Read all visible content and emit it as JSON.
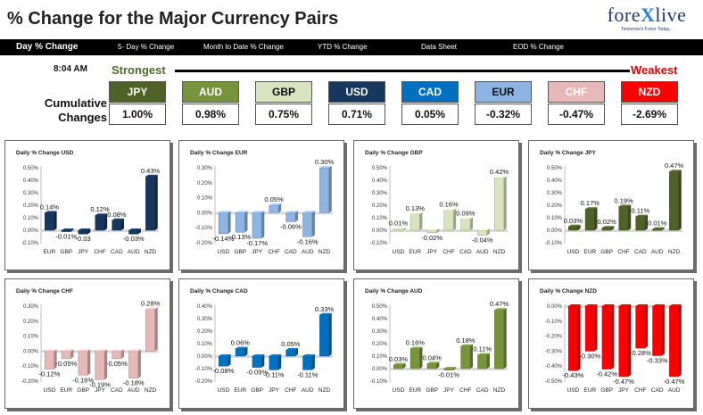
{
  "header": {
    "title": "% Change for the Major Currency Pairs",
    "logo": {
      "word_a": "fore",
      "word_x": "X",
      "word_b": "live",
      "tagline": "Tomorrow's Forex Today..."
    }
  },
  "tabs": [
    {
      "label": "Day % Change",
      "active": true
    },
    {
      "label": "5- Day % Change",
      "active": false
    },
    {
      "label": "Month to Date % Change",
      "active": false
    },
    {
      "label": "YTD % Change",
      "active": false
    },
    {
      "label": "Data Sheet",
      "active": false
    },
    {
      "label": "EOD % Change",
      "active": false
    }
  ],
  "summary": {
    "time": "8:04 AM",
    "strongest_label": "Strongest",
    "weakest_label": "Weakest",
    "row_label_line1": "Cumulative",
    "row_label_line2": "Changes",
    "currencies": [
      {
        "code": "JPY",
        "value": "1.00%",
        "bg": "#4f6228",
        "fg": "#ffffff"
      },
      {
        "code": "AUD",
        "value": "0.98%",
        "bg": "#77933c",
        "fg": "#ffffff"
      },
      {
        "code": "GBP",
        "value": "0.75%",
        "bg": "#d7e4bd",
        "fg": "#111111"
      },
      {
        "code": "USD",
        "value": "0.71%",
        "bg": "#17375e",
        "fg": "#ffffff"
      },
      {
        "code": "CAD",
        "value": "0.05%",
        "bg": "#0070c0",
        "fg": "#ffffff"
      },
      {
        "code": "EUR",
        "value": "-0.32%",
        "bg": "#8db4e2",
        "fg": "#111111"
      },
      {
        "code": "CHF",
        "value": "-0.47%",
        "bg": "#e6b9b8",
        "fg": "#ffffff"
      },
      {
        "code": "NZD",
        "value": "-2.69%",
        "bg": "#ff0000",
        "fg": "#ffffff"
      }
    ]
  },
  "chart_data": [
    {
      "type": "bar",
      "title": "Daily % Change USD",
      "categories": [
        "EUR",
        "GBP",
        "JPY",
        "CHF",
        "CAD",
        "AUD",
        "NZD"
      ],
      "values": [
        0.14,
        -0.01,
        -0.03,
        0.12,
        0.08,
        -0.03,
        0.43
      ],
      "value_labels": [
        "0.14%",
        "-0.01%",
        -0.03,
        "0.12%",
        "0.08%",
        "-0.03%",
        "0.43%"
      ],
      "ylim": [
        -0.1,
        0.5
      ],
      "yticks": [
        "-0.10%",
        "0.00%",
        "0.10%",
        "0.20%",
        "0.30%",
        "0.40%",
        "0.50%"
      ],
      "color": "#17375e"
    },
    {
      "type": "bar",
      "title": "Daily % Change EUR",
      "categories": [
        "USD",
        "GBP",
        "JPY",
        "CHF",
        "CAD",
        "AUD",
        "NZD"
      ],
      "values": [
        -0.14,
        -0.13,
        -0.17,
        0.05,
        -0.06,
        -0.16,
        0.3
      ],
      "value_labels": [
        "-0.14%",
        "-0.13%",
        "-0.17%",
        "0.05%",
        "-0.06%",
        "-0.16%",
        "0.30%"
      ],
      "ylim": [
        -0.2,
        0.3
      ],
      "yticks": [
        "-0.20%",
        "-0.10%",
        "0.00%",
        "0.10%",
        "0.20%",
        "0.30%"
      ],
      "color": "#8db4e2"
    },
    {
      "type": "bar",
      "title": "Daily % Change GBP",
      "categories": [
        "USD",
        "EUR",
        "JPY",
        "CHF",
        "CAD",
        "AUD",
        "NZD"
      ],
      "values": [
        0.01,
        0.13,
        -0.02,
        0.16,
        0.09,
        -0.04,
        0.42
      ],
      "value_labels": [
        "0.01%",
        "0.13%",
        "-0.02%",
        "0.16%",
        "0.09%",
        "-0.04%",
        "0.42%"
      ],
      "ylim": [
        -0.1,
        0.5
      ],
      "yticks": [
        "-0.10%",
        "0.00%",
        "0.10%",
        "0.20%",
        "0.30%",
        "0.40%",
        "0.50%"
      ],
      "color": "#d7e4bd"
    },
    {
      "type": "bar",
      "title": "Daily % Change JPY",
      "categories": [
        "USD",
        "EUR",
        "GBP",
        "CHF",
        "CAD",
        "AUD",
        "NZD"
      ],
      "values": [
        0.03,
        0.17,
        0.02,
        0.19,
        0.11,
        0.01,
        0.47
      ],
      "value_labels": [
        "0.03%",
        "0.17%",
        "0.02%",
        "0.19%",
        "0.11%",
        "0.01%",
        "0.47%"
      ],
      "ylim": [
        -0.1,
        0.5
      ],
      "yticks": [
        "-0.10%",
        "0.00%",
        "0.10%",
        "0.20%",
        "0.30%",
        "0.40%",
        "0.50%"
      ],
      "color": "#4f6228"
    },
    {
      "type": "bar",
      "title": "Daily % Change CHF",
      "categories": [
        "USD",
        "EUR",
        "GBP",
        "JPY",
        "CAD",
        "AUD",
        "NZD"
      ],
      "values": [
        -0.12,
        -0.05,
        -0.16,
        -0.19,
        -0.05,
        -0.18,
        0.28
      ],
      "value_labels": [
        "-0.12%",
        "-0.05%",
        "-0.16%",
        "-0.19%",
        "-0.05%",
        "-0.18%",
        "0.28%"
      ],
      "ylim": [
        -0.2,
        0.3
      ],
      "yticks": [
        "-0.20%",
        "-0.10%",
        "0.00%",
        "0.10%",
        "0.20%",
        "0.30%"
      ],
      "color": "#e6b9b8"
    },
    {
      "type": "bar",
      "title": "Daily % Change CAD",
      "categories": [
        "USD",
        "EUR",
        "GBP",
        "JPY",
        "CHF",
        "AUD",
        "NZD"
      ],
      "values": [
        -0.08,
        0.06,
        -0.09,
        -0.11,
        0.05,
        -0.11,
        0.33
      ],
      "value_labels": [
        "-0.08%",
        "0.06%",
        "-0.09%",
        "-0.11%",
        "0.05%",
        "-0.11%",
        "0.33%"
      ],
      "ylim": [
        -0.2,
        0.4
      ],
      "yticks": [
        "-0.20%",
        "-0.10%",
        "0.00%",
        "0.10%",
        "0.20%",
        "0.30%",
        "0.40%"
      ],
      "color": "#0070c0"
    },
    {
      "type": "bar",
      "title": "Daily % Change AUD",
      "categories": [
        "USD",
        "EUR",
        "GBP",
        "JPY",
        "CHF",
        "CAD",
        "NZD"
      ],
      "values": [
        0.03,
        0.16,
        0.04,
        -0.01,
        0.18,
        0.11,
        0.47
      ],
      "value_labels": [
        "0.03%",
        "0.16%",
        "0.04%",
        "-0.01%",
        "0.18%",
        "0.11%",
        "0.47%"
      ],
      "ylim": [
        -0.1,
        0.5
      ],
      "yticks": [
        "-0.10%",
        "0.00%",
        "0.10%",
        "0.20%",
        "0.30%",
        "0.40%",
        "0.50%"
      ],
      "color": "#77933c"
    },
    {
      "type": "bar",
      "title": "Daily % Change NZD",
      "categories": [
        "USD",
        "EUR",
        "GBP",
        "JPY",
        "CHF",
        "CAD",
        "AUD"
      ],
      "values": [
        -0.43,
        -0.3,
        -0.42,
        -0.47,
        -0.28,
        -0.33,
        -0.47
      ],
      "value_labels": [
        "-0.43%",
        "-0.30%",
        "-0.42%",
        "-0.47%",
        "-0.28%",
        "-0.33%",
        "-0.47%"
      ],
      "ylim": [
        -0.5,
        0.0
      ],
      "yticks": [
        "-0.50%",
        "-0.40%",
        "-0.30%",
        "-0.20%",
        "-0.10%",
        "0.00%"
      ],
      "color": "#ff0000"
    }
  ]
}
